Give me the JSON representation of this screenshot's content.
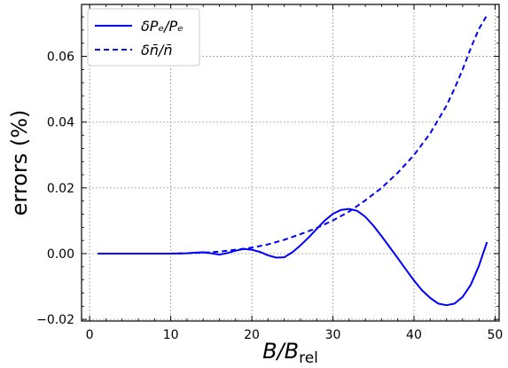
{
  "chart_data": {
    "type": "line",
    "xlabel": "B/B",
    "xlabel_sub": "rel",
    "ylabel": "errors (%)",
    "xlim": [
      -1,
      50.5
    ],
    "ylim": [
      -0.0205,
      0.0758
    ],
    "xticks": [
      0,
      10,
      20,
      30,
      40,
      50
    ],
    "yticks": [
      -0.02,
      0.0,
      0.02,
      0.04,
      0.06
    ],
    "ytick_labels": [
      "−0.02",
      "0.00",
      "0.02",
      "0.04",
      "0.06"
    ],
    "grid": true,
    "legend_position": "top-left",
    "color": "#0000ff",
    "series": [
      {
        "name": "δPₑ/Pₑ",
        "style": "solid",
        "x": [
          1,
          5,
          10,
          12,
          13,
          14,
          15,
          16,
          17,
          18,
          19,
          20,
          21,
          22,
          23,
          24,
          25,
          26,
          27,
          28,
          29,
          30,
          31,
          32,
          33,
          34,
          35,
          36,
          37,
          38,
          39,
          40,
          41,
          42,
          43,
          44,
          45,
          46,
          47,
          48,
          49
        ],
        "y": [
          0.0,
          0.0,
          0.0,
          0.0001,
          0.0003,
          0.0004,
          0.0001,
          -0.0003,
          0.0002,
          0.0009,
          0.0014,
          0.0012,
          0.0005,
          -0.0005,
          -0.0012,
          -0.0011,
          0.0004,
          0.0025,
          0.0049,
          0.0075,
          0.0101,
          0.0121,
          0.0133,
          0.0136,
          0.013,
          0.0112,
          0.0085,
          0.0053,
          0.002,
          -0.0014,
          -0.0048,
          -0.0082,
          -0.0112,
          -0.0135,
          -0.0152,
          -0.0157,
          -0.0152,
          -0.0132,
          -0.0095,
          -0.0038,
          0.0035
        ]
      },
      {
        "name": "δn̄/n̄",
        "style": "dashed",
        "x": [
          1,
          5,
          10,
          12,
          14,
          16,
          18,
          20,
          22,
          24,
          26,
          28,
          30,
          32,
          34,
          36,
          38,
          40,
          42,
          44,
          45,
          46,
          47,
          48,
          49
        ],
        "y": [
          0.0,
          0.0,
          0.0,
          0.0001,
          0.0003,
          0.0006,
          0.0012,
          0.0018,
          0.0028,
          0.0042,
          0.0059,
          0.0078,
          0.0101,
          0.0128,
          0.0162,
          0.02,
          0.0246,
          0.03,
          0.0366,
          0.045,
          0.0502,
          0.056,
          0.0625,
          0.0683,
          0.0725
        ]
      }
    ]
  }
}
